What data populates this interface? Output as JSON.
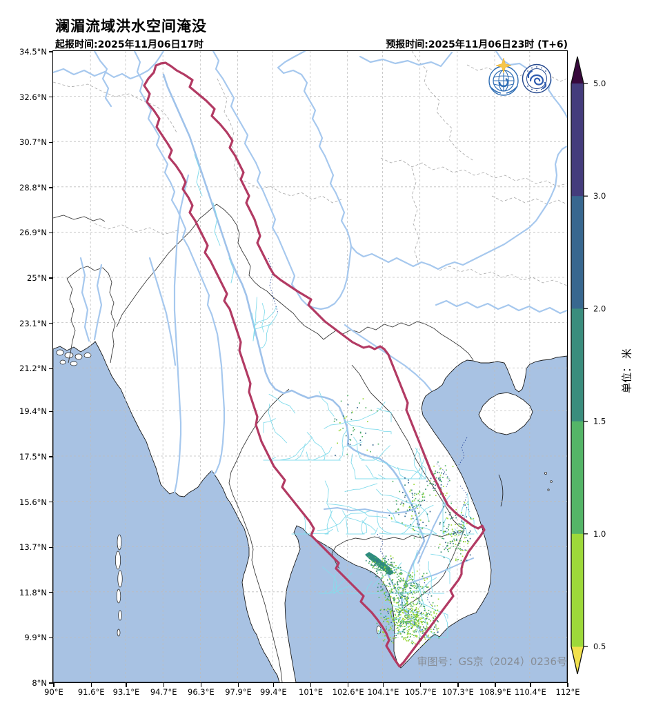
{
  "header": {
    "title": "澜湄流域洪水空间淹没",
    "init_time": "起报时间:2025年11月06日17时",
    "forecast_time": "预报时间:2025年11月06日23时 (T+6)"
  },
  "map": {
    "license": "审图号：GS京（2024）0236号",
    "logos": {
      "left": "wmo-logo",
      "right": "cma-logo"
    }
  },
  "axes": {
    "lon_range": [
      90,
      112
    ],
    "lat_range": [
      8,
      34.5
    ],
    "x_ticks": [
      {
        "v": 90,
        "label": "90°E"
      },
      {
        "v": 91.6,
        "label": "91.6°E"
      },
      {
        "v": 93.1,
        "label": "93.1°E"
      },
      {
        "v": 94.7,
        "label": "94.7°E"
      },
      {
        "v": 96.3,
        "label": "96.3°E"
      },
      {
        "v": 97.9,
        "label": "97.9°E"
      },
      {
        "v": 99.4,
        "label": "99.4°E"
      },
      {
        "v": 101,
        "label": "101°E"
      },
      {
        "v": 102.6,
        "label": "102.6°E"
      },
      {
        "v": 104.1,
        "label": "104.1°E"
      },
      {
        "v": 105.7,
        "label": "105.7°E"
      },
      {
        "v": 107.3,
        "label": "107.3°E"
      },
      {
        "v": 108.9,
        "label": "108.9°E"
      },
      {
        "v": 110.4,
        "label": "110.4°E"
      },
      {
        "v": 112,
        "label": "112°E"
      }
    ],
    "y_ticks": [
      {
        "v": 34.5,
        "label": "34.5°N"
      },
      {
        "v": 32.6,
        "label": "32.6°N"
      },
      {
        "v": 30.7,
        "label": "30.7°N"
      },
      {
        "v": 28.8,
        "label": "28.8°N"
      },
      {
        "v": 26.9,
        "label": "26.9°N"
      },
      {
        "v": 25,
        "label": "25°N"
      },
      {
        "v": 23.1,
        "label": "23.1°N"
      },
      {
        "v": 21.2,
        "label": "21.2°N"
      },
      {
        "v": 19.4,
        "label": "19.4°N"
      },
      {
        "v": 17.5,
        "label": "17.5°N"
      },
      {
        "v": 15.6,
        "label": "15.6°N"
      },
      {
        "v": 13.7,
        "label": "13.7°N"
      },
      {
        "v": 11.8,
        "label": "11.8°N"
      },
      {
        "v": 9.9,
        "label": "9.9°N"
      },
      {
        "v": 8,
        "label": "8°N"
      }
    ]
  },
  "colorbar": {
    "unit": "单位： 米",
    "levels": [
      0.5,
      1.0,
      1.5,
      2.0,
      3.0,
      5.0
    ],
    "tick_labels_top_down": [
      "5.0",
      "3.0",
      "2.0",
      "1.5",
      "1.0",
      "0.5"
    ],
    "segment_colors_top_down": [
      "#443c7c",
      "#38678f",
      "#3a8d7d",
      "#54b567",
      "#9dd93a"
    ],
    "over_color": "#38093d",
    "under_color": "#f2e14c"
  },
  "colors": {
    "sea": "#a8c2e3",
    "land": "#ffffff",
    "coastline": "#1a1a1a",
    "grid": "#bdbdbd",
    "country_border": "#3c3c3c",
    "province_border": "#a5a5a5",
    "major_river": "#a6c8ee",
    "stream": "#84dcec",
    "dotted_stream": "#2b4a9e",
    "basin_outline": "#b23a63",
    "lake": "#2e8b7e",
    "license_text": "#878d96",
    "flood_palette": [
      "#9dd93a",
      "#54b567",
      "#3a8d7d",
      "#38678f"
    ]
  }
}
